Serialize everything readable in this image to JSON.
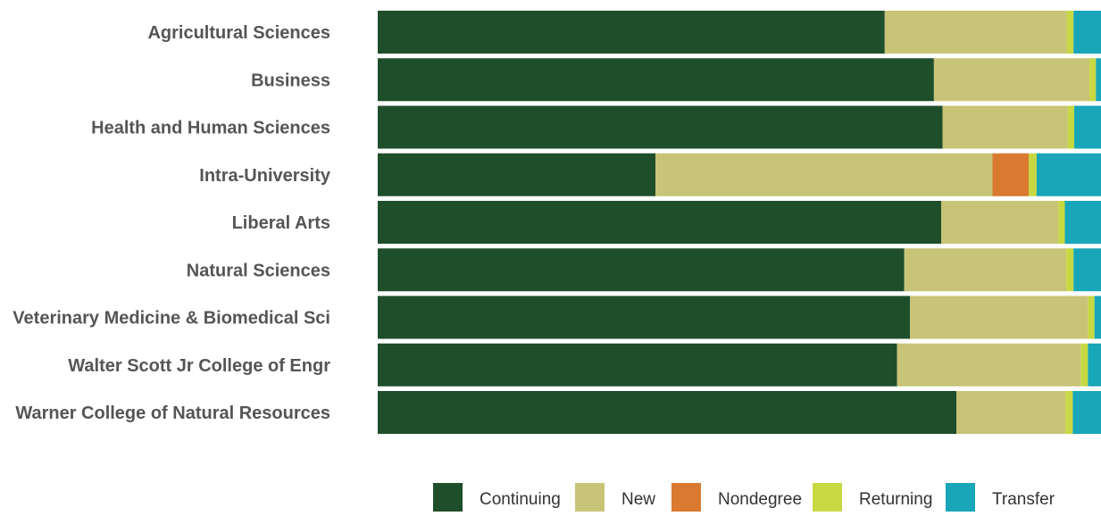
{
  "chart_data": {
    "type": "bar",
    "orientation": "horizontal",
    "stacked": true,
    "normalized": true,
    "title": "",
    "xlabel": "",
    "ylabel": "",
    "xlim": [
      0,
      100
    ],
    "grid": false,
    "legend_position": "bottom-right",
    "categories": [
      "Agricultural Sciences",
      "Business",
      "Health and Human Sciences",
      "Intra-University",
      "Liberal Arts",
      "Natural Sciences",
      "Veterinary Medicine & Biomedical Sci",
      "Walter Scott Jr College of Engr",
      "Warner College of Natural Resources"
    ],
    "series": [
      {
        "name": "Continuing",
        "color": "#1f4e2b",
        "values": [
          70.1,
          76.9,
          78.1,
          38.4,
          77.9,
          72.8,
          73.6,
          71.8,
          80.0
        ]
      },
      {
        "name": "New",
        "color": "#c8c477",
        "values": [
          25.2,
          21.5,
          17.3,
          46.6,
          16.2,
          22.4,
          24.6,
          25.4,
          15.1
        ]
      },
      {
        "name": "Nondegree",
        "color": "#d97a30",
        "values": [
          0.0,
          0.0,
          0.0,
          5.0,
          0.0,
          0.0,
          0.0,
          0.0,
          0.0
        ]
      },
      {
        "name": "Returning",
        "color": "#c7d843",
        "values": [
          0.9,
          0.9,
          0.9,
          1.1,
          0.9,
          1.0,
          0.9,
          1.0,
          1.0
        ]
      },
      {
        "name": "Transfer",
        "color": "#18a6b8",
        "values": [
          3.8,
          0.7,
          3.7,
          8.9,
          5.0,
          3.8,
          0.9,
          1.8,
          3.9
        ]
      }
    ]
  }
}
